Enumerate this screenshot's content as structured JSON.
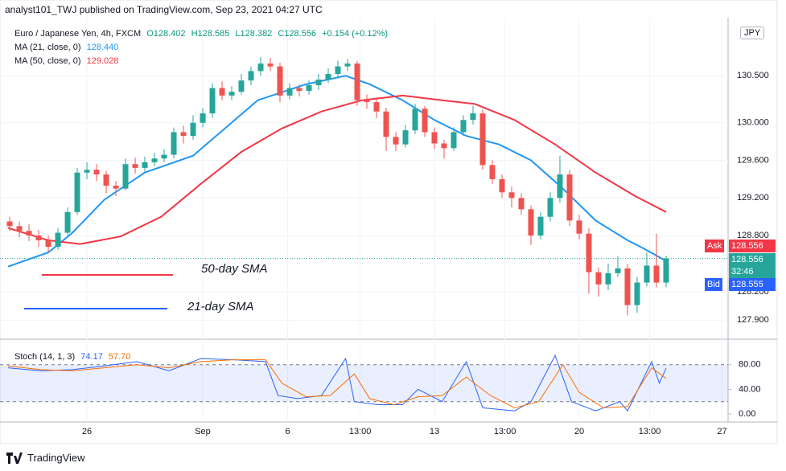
{
  "header": {
    "published": "analyst101_TWJ published on TradingView.com, Sep 23, 2021 04:27 UTC",
    "symbol": "Euro / Japanese Yen, 4h, FXCM",
    "quote": [
      "O128.402",
      "H128.585",
      "L128.382",
      "C128.556",
      "+0.154 (+0.12%)"
    ]
  },
  "currency": "JPY",
  "footer": "TradingView",
  "chart_data": [
    {
      "type": "candlestick",
      "up_color": "#26a69a",
      "down_color": "#ef5350",
      "candles": [
        [
          128.95,
          129.0,
          128.85,
          128.9
        ],
        [
          128.9,
          128.95,
          128.78,
          128.85
        ],
        [
          128.85,
          128.92,
          128.74,
          128.8
        ],
        [
          128.8,
          128.86,
          128.68,
          128.75
        ],
        [
          128.75,
          128.8,
          128.62,
          128.68
        ],
        [
          128.68,
          128.88,
          128.65,
          128.83
        ],
        [
          128.83,
          129.1,
          128.8,
          129.05
        ],
        [
          129.05,
          129.52,
          129.02,
          129.47
        ],
        [
          129.47,
          129.58,
          129.4,
          129.5
        ],
        [
          129.5,
          129.56,
          129.38,
          129.45
        ],
        [
          129.45,
          129.49,
          129.25,
          129.33
        ],
        [
          129.33,
          129.38,
          129.22,
          129.3
        ],
        [
          129.3,
          129.62,
          129.28,
          129.56
        ],
        [
          129.56,
          129.63,
          129.46,
          129.52
        ],
        [
          129.52,
          129.64,
          129.48,
          129.58
        ],
        [
          129.58,
          129.68,
          129.54,
          129.62
        ],
        [
          129.62,
          129.72,
          129.58,
          129.66
        ],
        [
          129.66,
          129.95,
          129.62,
          129.9
        ],
        [
          129.9,
          129.97,
          129.78,
          129.86
        ],
        [
          129.86,
          130.08,
          129.82,
          130.0
        ],
        [
          130.0,
          130.16,
          129.95,
          130.1
        ],
        [
          130.1,
          130.42,
          130.05,
          130.37
        ],
        [
          130.37,
          130.44,
          130.24,
          130.29
        ],
        [
          130.29,
          130.39,
          130.24,
          130.33
        ],
        [
          130.33,
          130.52,
          130.3,
          130.45
        ],
        [
          130.45,
          130.6,
          130.4,
          130.55
        ],
        [
          130.55,
          130.7,
          130.5,
          130.63
        ],
        [
          130.63,
          130.69,
          130.55,
          130.6
        ],
        [
          130.6,
          130.64,
          130.22,
          130.29
        ],
        [
          130.29,
          130.42,
          130.25,
          130.37
        ],
        [
          130.37,
          130.41,
          130.28,
          130.34
        ],
        [
          130.34,
          130.45,
          130.3,
          130.4
        ],
        [
          130.4,
          130.52,
          130.35,
          130.46
        ],
        [
          130.46,
          130.58,
          130.42,
          130.52
        ],
        [
          130.52,
          130.66,
          130.48,
          130.6
        ],
        [
          130.6,
          130.68,
          130.55,
          130.63
        ],
        [
          130.63,
          130.66,
          130.18,
          130.24
        ],
        [
          130.24,
          130.3,
          130.15,
          130.22
        ],
        [
          130.22,
          130.27,
          130.05,
          130.12
        ],
        [
          130.12,
          130.16,
          129.7,
          129.85
        ],
        [
          129.85,
          129.9,
          129.7,
          129.77
        ],
        [
          129.77,
          129.98,
          129.74,
          129.92
        ],
        [
          129.92,
          130.2,
          129.88,
          130.15
        ],
        [
          130.15,
          130.18,
          129.85,
          129.9
        ],
        [
          129.9,
          129.95,
          129.72,
          129.78
        ],
        [
          129.78,
          129.82,
          129.62,
          129.73
        ],
        [
          129.73,
          129.95,
          129.7,
          129.9
        ],
        [
          129.9,
          130.08,
          129.86,
          130.03
        ],
        [
          130.03,
          130.18,
          129.98,
          130.1
        ],
        [
          130.1,
          130.14,
          129.5,
          129.55
        ],
        [
          129.55,
          129.6,
          129.35,
          129.4
        ],
        [
          129.4,
          129.45,
          129.2,
          129.26
        ],
        [
          129.26,
          129.32,
          129.1,
          129.2
        ],
        [
          129.2,
          129.25,
          129.02,
          129.08
        ],
        [
          129.08,
          129.12,
          128.7,
          128.8
        ],
        [
          128.8,
          129.05,
          128.76,
          129.0
        ],
        [
          129.0,
          129.26,
          128.95,
          129.2
        ],
        [
          129.2,
          129.65,
          129.15,
          129.45
        ],
        [
          129.45,
          129.5,
          128.9,
          128.96
        ],
        [
          128.96,
          129.02,
          128.76,
          128.82
        ],
        [
          128.82,
          128.88,
          128.18,
          128.41
        ],
        [
          128.41,
          128.46,
          128.15,
          128.28
        ],
        [
          128.28,
          128.5,
          128.22,
          128.4
        ],
        [
          128.4,
          128.58,
          128.36,
          128.45
        ],
        [
          128.45,
          128.5,
          127.95,
          128.06
        ],
        [
          128.06,
          128.36,
          127.98,
          128.3
        ],
        [
          128.3,
          128.62,
          128.26,
          128.48
        ],
        [
          128.48,
          128.82,
          128.25,
          128.3
        ],
        [
          128.3,
          128.585,
          128.25,
          128.556
        ]
      ],
      "lines": [
        {
          "name": "MA (21, close, 0)",
          "value_label": "128.440",
          "color": "#2196f3",
          "x": [
            -0.17,
            4,
            6.5,
            9.8,
            14,
            19,
            22.3,
            25.7,
            30.7,
            34.8,
            37.3,
            40.7,
            44,
            47.3,
            50.7,
            54,
            57.3,
            60.7,
            64,
            65.7,
            68
          ],
          "values": [
            128.47,
            128.62,
            128.83,
            129.18,
            129.47,
            129.65,
            129.94,
            130.24,
            130.41,
            130.5,
            130.41,
            130.24,
            130.03,
            129.86,
            129.77,
            129.6,
            129.3,
            128.96,
            128.75,
            128.66,
            128.53
          ]
        },
        {
          "name": "MA (50, close, 0)",
          "value_label": "129.028",
          "color": "#f23645",
          "x": [
            -0.17,
            4,
            7.3,
            11.5,
            15.7,
            19.8,
            24,
            28.2,
            32.3,
            36.5,
            40.7,
            44.8,
            48.2,
            52.3,
            56.5,
            60.7,
            64.8,
            68
          ],
          "values": [
            128.88,
            128.75,
            128.71,
            128.79,
            129.0,
            129.35,
            129.69,
            129.94,
            130.12,
            130.24,
            130.29,
            130.24,
            130.2,
            130.03,
            129.77,
            129.47,
            129.22,
            129.05
          ]
        }
      ],
      "annotations": [
        {
          "text": "50-day SMA",
          "color": "#f23645"
        },
        {
          "text": "21-day SMA",
          "color": "#2962ff"
        }
      ],
      "last": 128.556,
      "ask_tag": [
        "Ask",
        "128.556"
      ],
      "price_tag": [
        "128.556",
        "32:46"
      ],
      "bid_tag": [
        "Bid",
        "128.555"
      ],
      "xlim": [
        -0.17,
        74.42
      ],
      "ylim": [
        127.8,
        131.05
      ],
      "yticks": [
        {
          "value": 130.5,
          "label": "130.500"
        },
        {
          "value": 130,
          "label": "130.000"
        },
        {
          "value": 129.6,
          "label": "129.600"
        },
        {
          "value": 129.2,
          "label": "129.200"
        },
        {
          "value": 128.8,
          "label": "128.800"
        },
        {
          "value": 128.2,
          "label": "128.200"
        },
        {
          "value": 127.9,
          "label": "127.900"
        }
      ],
      "xticks": [
        {
          "value": 8,
          "label": "26"
        },
        {
          "value": 20,
          "label": "Sep"
        },
        {
          "value": 28.8,
          "label": "6"
        },
        {
          "value": 36.3,
          "label": "13:00"
        },
        {
          "value": 44,
          "label": "13"
        },
        {
          "value": 51.3,
          "label": "13:00"
        },
        {
          "value": 59,
          "label": "20"
        },
        {
          "value": 66.3,
          "label": "13:00"
        },
        {
          "value": 73.8,
          "label": "27"
        }
      ],
      "grid": true
    },
    {
      "type": "line",
      "name": "Stoch (14, 1, 3)",
      "xlim": [
        -0.17,
        74.42
      ],
      "ylim": [
        -13,
        111
      ],
      "yticks": [
        {
          "value": 80,
          "label": "80.00"
        },
        {
          "value": 40,
          "label": "40.00"
        },
        {
          "value": 0,
          "label": "0.00"
        }
      ],
      "levels": [
        80,
        20
      ],
      "series": [
        {
          "value_label": "74.17",
          "color": "#2962ff",
          "x": [
            -0.17,
            3.2,
            6.5,
            9.8,
            13.2,
            16.5,
            19.8,
            23.2,
            26.5,
            27.8,
            29.8,
            32.3,
            34.8,
            35.7,
            38.2,
            40.7,
            42.3,
            44.8,
            47.3,
            49,
            52.3,
            54,
            56.5,
            58.2,
            60.7,
            63.2,
            64,
            66.5,
            67.3,
            68
          ],
          "values": [
            75,
            70,
            72,
            78,
            85,
            70,
            90,
            88,
            85,
            30,
            25,
            30,
            90,
            20,
            15,
            15,
            40,
            20,
            85,
            10,
            5,
            20,
            95,
            20,
            5,
            20,
            5,
            85,
            50,
            74.17
          ]
        },
        {
          "value_label": "57.70",
          "color": "#ff6d00",
          "x": [
            -0.17,
            3.2,
            6.5,
            9.8,
            13.2,
            16.5,
            19.8,
            23.2,
            26.5,
            28.2,
            30.7,
            33.2,
            35.7,
            37.3,
            39.8,
            42.3,
            44.8,
            47.3,
            49.8,
            52.3,
            54.8,
            57.3,
            59,
            61.5,
            64,
            66.5,
            68
          ],
          "values": [
            78,
            72,
            70,
            75,
            80,
            75,
            85,
            88,
            88,
            50,
            28,
            30,
            65,
            25,
            15,
            28,
            30,
            60,
            30,
            10,
            20,
            80,
            35,
            10,
            12,
            75,
            57.7
          ]
        }
      ]
    }
  ]
}
